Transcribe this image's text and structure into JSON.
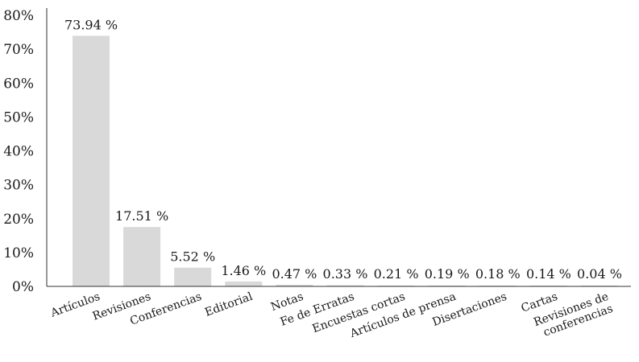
{
  "chart_data": {
    "type": "bar",
    "categories": [
      [
        "Artículos"
      ],
      [
        "Revisiones"
      ],
      [
        "Conferencias"
      ],
      [
        "Editorial"
      ],
      [
        "Notas"
      ],
      [
        "Fe de Erratas"
      ],
      [
        "Encuestas cortas"
      ],
      [
        "Artículos de prensa"
      ],
      [
        "Disertaciones"
      ],
      [
        "Cartas"
      ],
      [
        "Revisiones de",
        "conferencias"
      ]
    ],
    "values": [
      73.94,
      17.51,
      5.52,
      1.46,
      0.47,
      0.33,
      0.21,
      0.19,
      0.18,
      0.14,
      0.04
    ],
    "data_labels": [
      "73.94 %",
      "17.51 %",
      "5.52 %",
      "1.46 %",
      "0.47 %",
      "0.33 %",
      "0.21 %",
      "0.19 %",
      "0.18 %",
      "0.14 %",
      "0.04 %"
    ],
    "ylim": [
      0,
      80
    ],
    "yticks": [
      0,
      10,
      20,
      30,
      40,
      50,
      60,
      70,
      80
    ],
    "ytick_labels": [
      "0%",
      "10%",
      "20%",
      "30%",
      "40%",
      "50%",
      "60%",
      "70%",
      "80%"
    ],
    "grid": false,
    "bar_color": "#d9d9d9",
    "title": "",
    "xlabel": "",
    "ylabel": ""
  }
}
